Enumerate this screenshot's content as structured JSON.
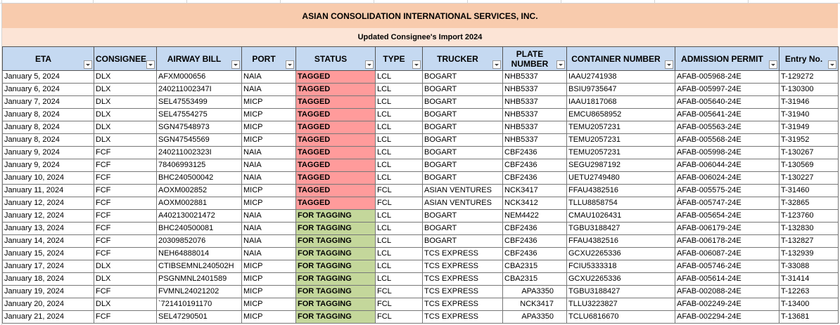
{
  "title": "ASIAN CONSOLIDATION INTERNATIONAL SERVICES, INC.",
  "subtitle": "Updated Consignee's Import 2024",
  "table": {
    "headers": [
      "ETA",
      "CONSIGNEE",
      "AIRWAY BILL",
      "PORT",
      "STATUS",
      "TYPE",
      "TRUCKER",
      "PLATE NUMBER",
      "CONTAINER NUMBER",
      "ADMISSION PERMIT",
      "Entry No."
    ],
    "rows": [
      [
        "January 5, 2024",
        "DLX",
        "AFXM000656",
        "NAIA",
        "TAGGED",
        "LCL",
        "BOGART",
        "NHB5337",
        "IAAU2741938",
        "AFAB-005968-24E",
        "T-129272"
      ],
      [
        "January 6, 2024",
        "DLX",
        "240211002347I",
        "NAIA",
        "TAGGED",
        "LCL",
        "BOGART",
        "NHB5337",
        "BSIU9735647",
        "AFAB-005997-24E",
        "T-130300"
      ],
      [
        "January 7, 2024",
        "DLX",
        "SEL47553499",
        "MICP",
        "TAGGED",
        "LCL",
        "BOGART",
        "NHB5337",
        "IAAU1817068",
        "AFAB-005640-24E",
        "T-31946"
      ],
      [
        "January 8, 2024",
        "DLX",
        "SEL47554275",
        "MICP",
        "TAGGED",
        "LCL",
        "BOGART",
        "NHB5337",
        "EMCU8658952",
        "AFAB-005641-24E",
        "T-31940"
      ],
      [
        "January 8, 2024",
        "DLX",
        "SGN47548973",
        "MICP",
        "TAGGED",
        "LCL",
        "BOGART",
        "NHB5337",
        "TEMU2057231",
        "AFAB-005563-24E",
        "T-31949"
      ],
      [
        "January 8, 2024",
        "DLX",
        "SGN47545569",
        "MICP",
        "TAGGED",
        "LCL",
        "BOGART",
        "NHB5337",
        "TEMU2057231",
        "AFAB-005568-24E",
        "T-31952"
      ],
      [
        "January 9, 2024",
        "FCF",
        "240211002323I",
        "NAIA",
        "TAGGED",
        "LCL",
        "BOGART",
        "CBF2436",
        "TEMU2057231",
        "AFAB-005998-24E",
        "T-130267"
      ],
      [
        "January 9, 2024",
        "FCF",
        "78406993125",
        "NAIA",
        "TAGGED",
        "LCL",
        "BOGART",
        "CBF2436",
        "SEGU2987192",
        "AFAB-006044-24E",
        "T-130569"
      ],
      [
        "January 10, 2024",
        "FCF",
        "BHC240500042",
        "NAIA",
        "TAGGED",
        "LCL",
        "BOGART",
        "CBF2436",
        "UETU2749480",
        "AFAB-006024-24E",
        "T-130227"
      ],
      [
        "January 11, 2024",
        "FCF",
        "AOXM002852",
        "MICP",
        "TAGGED",
        "FCL",
        "ASIAN VENTURES",
        "NCK3417",
        "FFAU4382516",
        "AFAB-005575-24E",
        "T-31460"
      ],
      [
        "January 12, 2024",
        "FCF",
        "AOXM002881",
        "MICP",
        "TAGGED",
        "FCL",
        "ASIAN VENTURES",
        "NCK3412",
        "TLLU8858754",
        "ÀFAB-005747-24E",
        "T-32865"
      ],
      [
        "January 12, 2024",
        "FCF",
        "A402130021472",
        "NAIA",
        "FOR TAGGING",
        "LCL",
        "BOGART",
        "NEM4422",
        "CMAU1026431",
        "AFAB-005654-24E",
        "T-123760"
      ],
      [
        "January 13, 2024",
        "FCF",
        "BHC240500081",
        "NAIA",
        "FOR TAGGING",
        "LCL",
        "BOGART",
        "CBF2436",
        "TGBU3188427",
        "AFAB-006179-24E",
        "T-132830"
      ],
      [
        "January 14, 2024",
        "FCF",
        "20309852076",
        "NAIA",
        "FOR TAGGING",
        "LCL",
        "BOGART",
        "CBF2436",
        "FFAU4382516",
        "AFAB-006178-24E",
        "T-132827"
      ],
      [
        "January 15, 2024",
        "FCF",
        "NEH64888014",
        "NAIA",
        "FOR TAGGING",
        "LCL",
        "TCS EXPRESS",
        "CBF2436",
        "GCXU2265336",
        "AFAB-006087-24E",
        "T-132939"
      ],
      [
        "January 17, 2024",
        "DLX",
        "CTIBSEMNL240502H",
        "MICP",
        "FOR TAGGING",
        "LCL",
        "TCS EXPRESS",
        "CBA2315",
        "FCIU5333318",
        "AFAB-005746-24E",
        "T-33088"
      ],
      [
        "January 18, 2024",
        "DLX",
        "PSGNMNL2401589",
        "MICP",
        "FOR TAGGING",
        "LCL",
        "TCS EXPRESS",
        "CBA2315",
        "GCXU2265336",
        "AFAB-005614-24E",
        "T-31414"
      ],
      [
        "January 19, 2024",
        "FCF",
        "FVMNL24021202",
        "MICP",
        "FOR TAGGING",
        "FCL",
        "TCS EXPRESS",
        "APA3350",
        "TGBU3188427",
        "AFAB-002088-24E",
        "T-12263"
      ],
      [
        "January 20, 2024",
        "DLX",
        "`721410191170",
        "MICP",
        "FOR TAGGING",
        "FCL",
        "TCS EXPRESS",
        "NCK3417",
        "TLLU3223827",
        "AFAB-002249-24E",
        "T-13400"
      ],
      [
        "January 21, 2024",
        "FCF",
        "SEL47290501",
        "MICP",
        "FOR TAGGING",
        "FCL",
        "TCS EXPRESS",
        "APA3350",
        "TCLU6816670",
        "AFAB-002294-24E",
        "T-13681"
      ]
    ],
    "status_colors": [
      "#ff9b9b",
      "#ff9b9b",
      "#ff9b9b",
      "#ff9b9b",
      "#ff9b9b",
      "#ff9b9b",
      "#ff9b9b",
      "#ff9b9b",
      "#ff9b9b",
      "#ff9b9b",
      "#ff9b9b",
      "#c4d79b",
      "#c4d79b",
      "#c4d79b",
      "#c4d79b",
      "#c4d79b",
      "#c4d79b",
      "#c4d79b",
      "#c4d79b",
      "#c4d79b"
    ]
  }
}
